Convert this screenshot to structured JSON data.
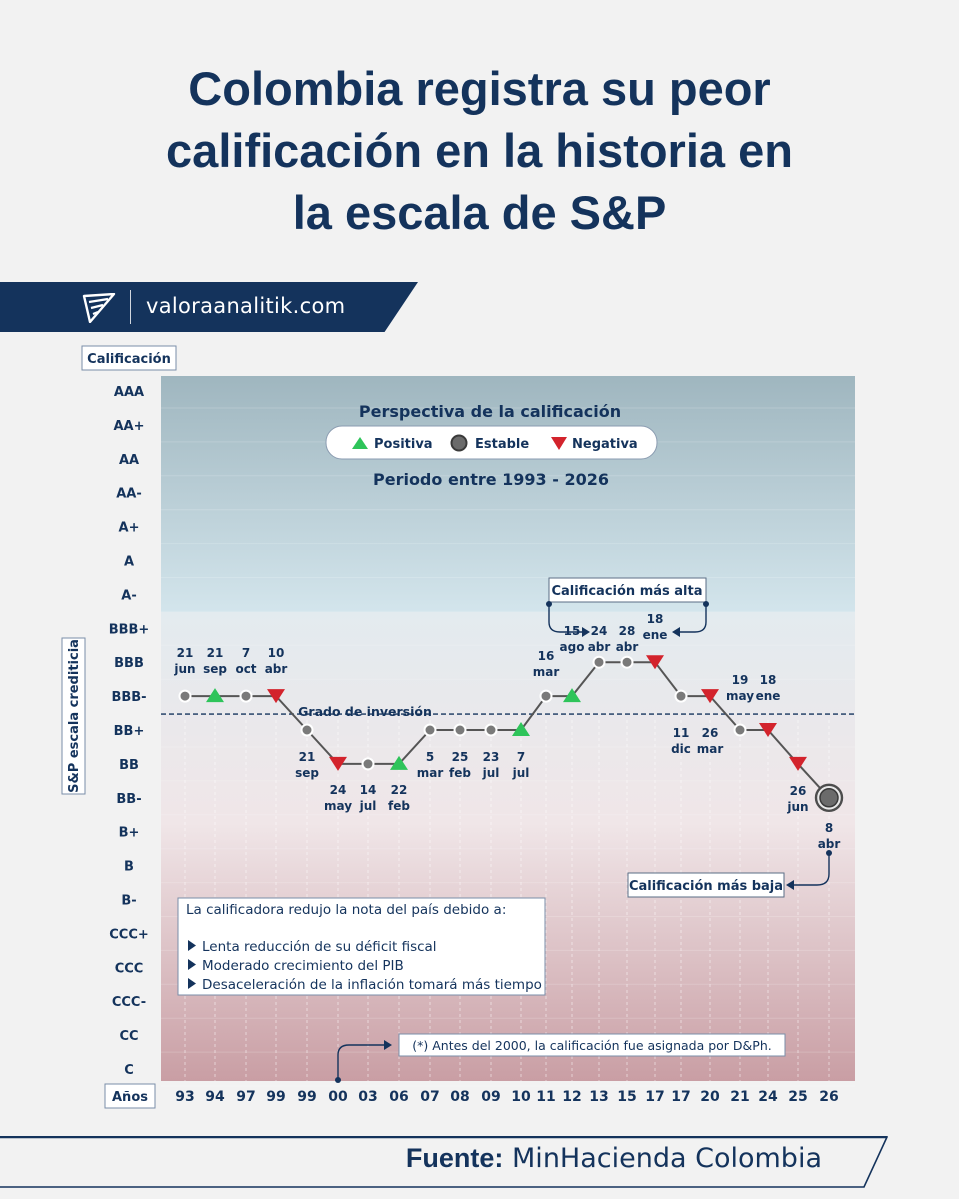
{
  "header": {
    "title_lines": [
      "Colombia registra su peor",
      "calificación en la historia en",
      "la escala de S&P"
    ]
  },
  "brand": {
    "url": "valoraanalitik.com",
    "logo_icon": "valora-logo-icon"
  },
  "legend": {
    "title": "Perspectiva de la calificación",
    "items": [
      {
        "label": "Positiva",
        "icon": "triangle-up-icon",
        "color": "#2ec45a"
      },
      {
        "label": "Estable",
        "icon": "circle-icon",
        "color": "#5a5a5a"
      },
      {
        "label": "Negativa",
        "icon": "triangle-down-icon",
        "color": "#d3232c"
      }
    ],
    "period": "Periodo entre 1993 - 2026"
  },
  "annotations": {
    "highest": "Calificación más alta",
    "lowest": "Calificación más baja",
    "investment_grade": "Grado de inversión",
    "note": "(*) Antes del 2000, la calificación fue asignada por D&Ph.",
    "reasons_title": "La calificadora redujo la nota del país debido a:",
    "reasons": [
      "Lenta reducción de su déficit fiscal",
      "Moderado crecimiento del PIB",
      "Desaceleración de la inflación tomará más tiempo"
    ]
  },
  "source": {
    "label": "Fuente:",
    "value": "MinHacienda Colombia"
  },
  "chart_data": {
    "type": "line",
    "ylabel_box": "Calificación",
    "ylabel": "S&P escala crediticia",
    "xlabel_box": "Años",
    "y_scale": [
      "AAA",
      "AA+",
      "AA",
      "AA-",
      "A+",
      "A",
      "A-",
      "BBB+",
      "BBB",
      "BBB-",
      "BB+",
      "BB",
      "BB-",
      "B+",
      "B",
      "B-",
      "CCC+",
      "CCC",
      "CCC-",
      "CC",
      "C"
    ],
    "investment_grade_threshold": "between BBB- and BB+",
    "colors": {
      "positive": "#2ec45a",
      "stable": "#5a5a5a",
      "negative": "#d3232c",
      "line": "#555555"
    },
    "points": [
      {
        "year": "93",
        "day": "21",
        "month": "jun",
        "rating": "BBB-",
        "outlook": "stable"
      },
      {
        "year": "94",
        "day": "21",
        "month": "sep",
        "rating": "BBB-",
        "outlook": "positive"
      },
      {
        "year": "97",
        "day": "7",
        "month": "oct",
        "rating": "BBB-",
        "outlook": "stable"
      },
      {
        "year": "99",
        "day": "10",
        "month": "abr",
        "rating": "BBB-",
        "outlook": "negative"
      },
      {
        "year": "99",
        "day": "21",
        "month": "sep",
        "rating": "BB+",
        "outlook": "stable"
      },
      {
        "year": "00",
        "day": "24",
        "month": "may",
        "rating": "BB",
        "outlook": "negative"
      },
      {
        "year": "03",
        "day": "14",
        "month": "jul",
        "rating": "BB",
        "outlook": "stable"
      },
      {
        "year": "06",
        "day": "22",
        "month": "feb",
        "rating": "BB",
        "outlook": "positive"
      },
      {
        "year": "07",
        "day": "5",
        "month": "mar",
        "rating": "BB+",
        "outlook": "stable"
      },
      {
        "year": "08",
        "day": "25",
        "month": "feb",
        "rating": "BB+",
        "outlook": "stable"
      },
      {
        "year": "09",
        "day": "23",
        "month": "jul",
        "rating": "BB+",
        "outlook": "stable"
      },
      {
        "year": "10",
        "day": "7",
        "month": "jul",
        "rating": "BB+",
        "outlook": "positive"
      },
      {
        "year": "11",
        "day": "16",
        "month": "mar",
        "rating": "BBB-",
        "outlook": "stable"
      },
      {
        "year": "12",
        "day": "15",
        "month": "ago",
        "rating": "BBB-",
        "outlook": "positive"
      },
      {
        "year": "13",
        "day": "24",
        "month": "abr",
        "rating": "BBB",
        "outlook": "stable"
      },
      {
        "year": "15",
        "day": "28",
        "month": "abr",
        "rating": "BBB",
        "outlook": "stable"
      },
      {
        "year": "17",
        "day": "18",
        "month": "ene",
        "rating": "BBB",
        "outlook": "negative"
      },
      {
        "year": "17",
        "day": "11",
        "month": "dic",
        "rating": "BBB-",
        "outlook": "stable"
      },
      {
        "year": "20",
        "day": "26",
        "month": "mar",
        "rating": "BBB-",
        "outlook": "negative"
      },
      {
        "year": "21",
        "day": "19",
        "month": "may",
        "rating": "BB+",
        "outlook": "stable"
      },
      {
        "year": "24",
        "day": "18",
        "month": "ene",
        "rating": "BB+",
        "outlook": "negative"
      },
      {
        "year": "25",
        "day": "26",
        "month": "jun",
        "rating": "BB",
        "outlook": "negative"
      },
      {
        "year": "26",
        "day": "8",
        "month": "abr",
        "rating": "BB-",
        "outlook": "stable"
      }
    ]
  }
}
